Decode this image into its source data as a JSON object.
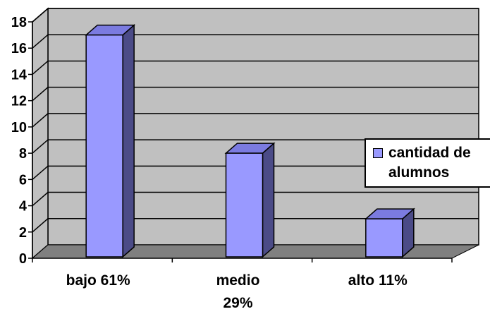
{
  "chart_data": {
    "type": "bar",
    "categories": [
      "bajo 61%",
      "medio 29%",
      "alto 11%"
    ],
    "series": [
      {
        "name": "cantidad de alumnos",
        "values": [
          17,
          8,
          3
        ]
      }
    ],
    "ylim": [
      0,
      18
    ],
    "yticks": [
      "0",
      "2",
      "4",
      "6",
      "8",
      "10",
      "12",
      "14",
      "16",
      "18"
    ],
    "grid": true,
    "legend_position": "right",
    "three_d": true,
    "colors": {
      "bar_front": "#9999ff",
      "bar_side": "#4b4b87",
      "bar_top": "#7b7be0",
      "wall": "#c0c0c0",
      "floor": "#808080",
      "gridline": "#000000"
    }
  },
  "legend": {
    "label": "cantidad de alumnos"
  }
}
